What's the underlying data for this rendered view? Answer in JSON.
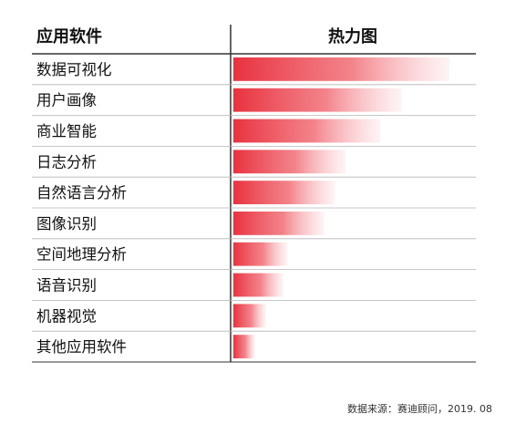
{
  "chart_data": {
    "type": "bar",
    "title": "",
    "column_headers": [
      "应用软件",
      "热力图"
    ],
    "categories": [
      "数据可视化",
      "用户画像",
      "商业智能",
      "日志分析",
      "自然语言分析",
      "图像识别",
      "空间地理分析",
      "语音识别",
      "机器视觉",
      "其他应用软件"
    ],
    "values": [
      100,
      78,
      68,
      52,
      47,
      42,
      25,
      23,
      15,
      10
    ],
    "xlim": [
      0,
      100
    ],
    "color": "#e8323f",
    "gradient": "solid on left, fading to white on right",
    "grid": false,
    "legend": "none"
  },
  "footer": {
    "source": "数据来源：赛迪顾问，2019. 08"
  }
}
